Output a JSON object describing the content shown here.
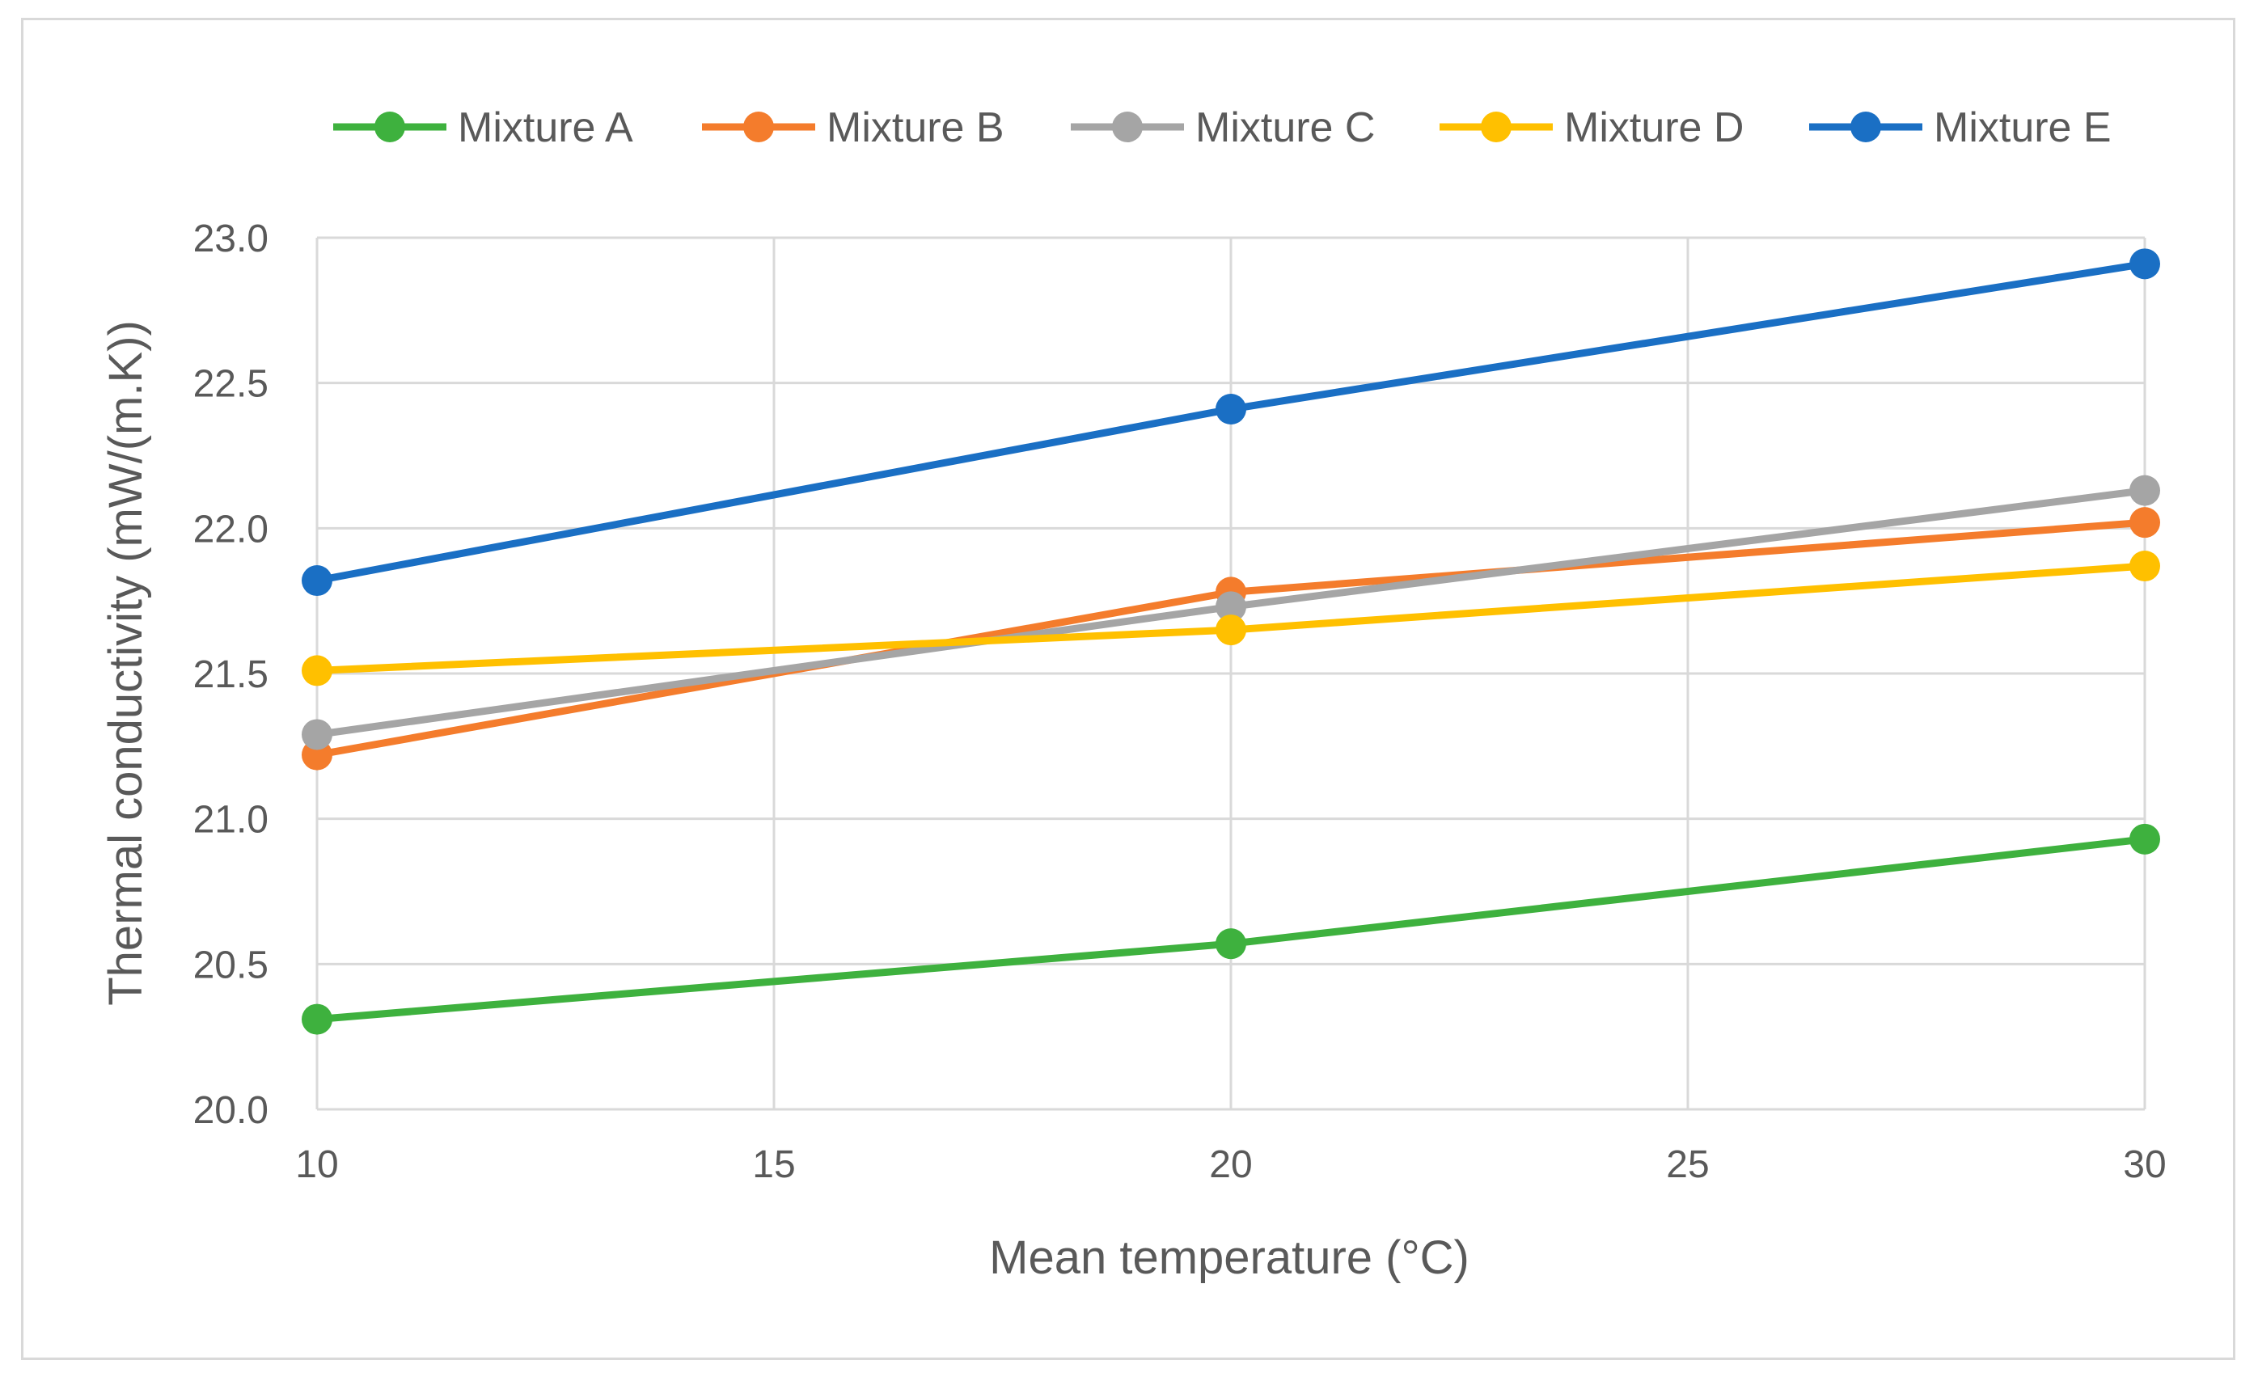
{
  "chart_data": {
    "type": "line",
    "title": "",
    "xlabel": "Mean temperature (°C)",
    "ylabel": "Thermal conductivity (mW/(m.K))",
    "xlim": [
      10,
      30
    ],
    "ylim": [
      20.0,
      23.0
    ],
    "xticks": [
      "10",
      "15",
      "20",
      "25",
      "30"
    ],
    "yticks": [
      "20.0",
      "20.5",
      "21.0",
      "21.5",
      "22.0",
      "22.5",
      "23.0"
    ],
    "grid": true,
    "legend_position": "top",
    "x": [
      10,
      20,
      30
    ],
    "series": [
      {
        "name": "Mixture A",
        "color": "#3eb13e",
        "values": [
          20.31,
          20.57,
          20.93
        ]
      },
      {
        "name": "Mixture B",
        "color": "#f47c2c",
        "values": [
          21.22,
          21.78,
          22.02
        ]
      },
      {
        "name": "Mixture C",
        "color": "#a5a5a5",
        "values": [
          21.29,
          21.73,
          22.13
        ]
      },
      {
        "name": "Mixture D",
        "color": "#ffc000",
        "values": [
          21.51,
          21.65,
          21.87
        ]
      },
      {
        "name": "Mixture E",
        "color": "#1a6fc4",
        "values": [
          21.82,
          22.41,
          22.91
        ]
      }
    ]
  }
}
